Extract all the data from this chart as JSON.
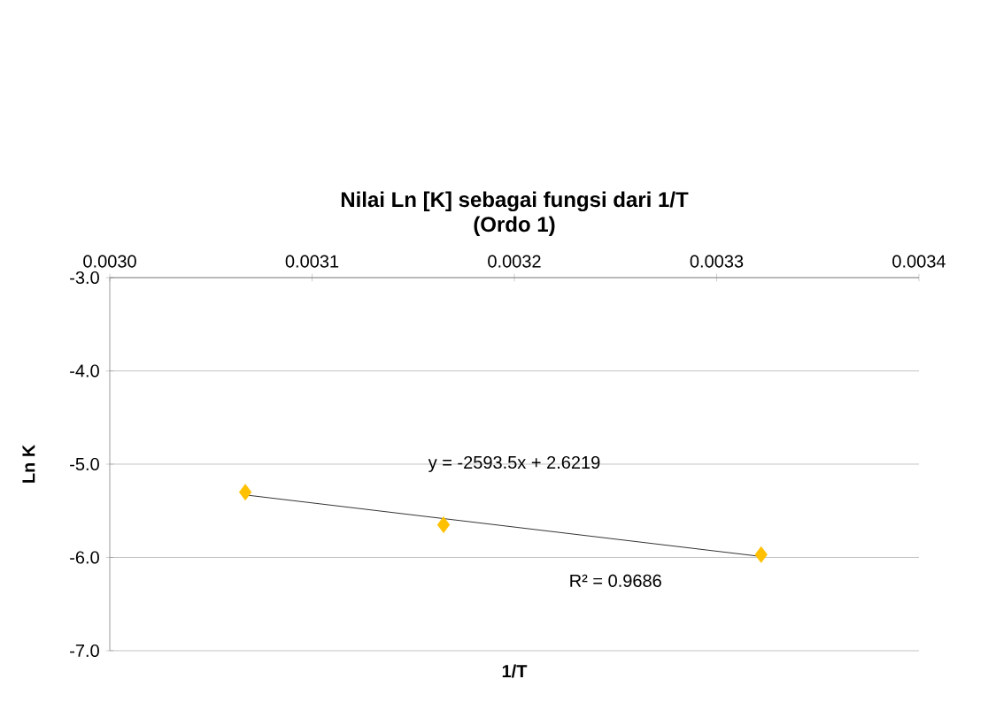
{
  "chart_data": {
    "type": "scatter",
    "title": "Nilai Ln [K] sebagai fungsi dari 1/T\n(Ordo 1)",
    "xlabel": "1/T",
    "ylabel": "Ln K",
    "xlim": [
      0.003,
      0.0034
    ],
    "xticks": [
      {
        "value": 0.003,
        "label": "0.0030"
      },
      {
        "value": 0.0031,
        "label": "0.0031"
      },
      {
        "value": 0.0032,
        "label": "0.0032"
      },
      {
        "value": 0.0033,
        "label": "0.0033"
      },
      {
        "value": 0.0034,
        "label": "0.0034"
      }
    ],
    "ylim": [
      -7,
      -3
    ],
    "yticks": [
      {
        "value": -7,
        "label": "-7.0"
      },
      {
        "value": -6,
        "label": "-6.0"
      },
      {
        "value": -5,
        "label": "-5.0"
      },
      {
        "value": -4,
        "label": "-4.0"
      },
      {
        "value": -3,
        "label": "-3.0"
      }
    ],
    "grid": "y",
    "marker": "diamond",
    "series": [
      {
        "type": "scatter",
        "color": "#ffc000",
        "x": [
          0.003067,
          0.003165,
          0.003322
        ],
        "values": [
          -5.3,
          -5.65,
          -5.97
        ]
      },
      {
        "type": "line",
        "color": "#000000",
        "marker": "none",
        "x": [
          0.003067,
          0.003322
        ],
        "values": [
          -5.33,
          -5.99
        ]
      }
    ],
    "annotations": [
      "y = -2593.5x + 2.6219",
      "R² = 0.9686"
    ]
  }
}
